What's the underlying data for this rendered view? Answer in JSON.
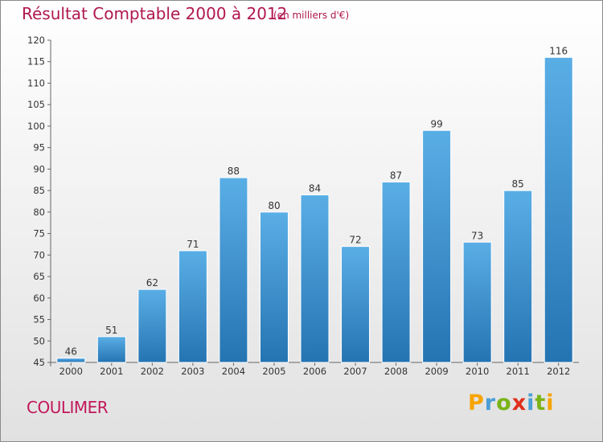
{
  "chart_data": {
    "type": "bar",
    "title": "Résultat Comptable 2000 à 2012",
    "subtitle": "(en milliers d'€)",
    "categories": [
      "2000",
      "2001",
      "2002",
      "2003",
      "2004",
      "2005",
      "2006",
      "2007",
      "2008",
      "2009",
      "2010",
      "2011",
      "2012"
    ],
    "values": [
      46,
      51,
      62,
      71,
      88,
      80,
      84,
      72,
      87,
      99,
      73,
      85,
      116
    ],
    "ylim": [
      45,
      120
    ],
    "yticks": [
      45,
      50,
      55,
      60,
      65,
      70,
      75,
      80,
      85,
      90,
      95,
      100,
      105,
      110,
      115,
      120
    ],
    "xlabel": "",
    "ylabel": "",
    "grid": false,
    "bar_color_top": "#5aaee6",
    "bar_color_bottom": "#2574b2"
  },
  "footer": {
    "commune": "COULIMER",
    "logo_letters": [
      "P",
      "r",
      "o",
      "x",
      "i",
      "t",
      "i"
    ],
    "logo_colors": [
      "#f7a400",
      "#4a9fd5",
      "#7ab317",
      "#e0301e",
      "#4a9fd5",
      "#7ab317",
      "#f7a400"
    ]
  }
}
